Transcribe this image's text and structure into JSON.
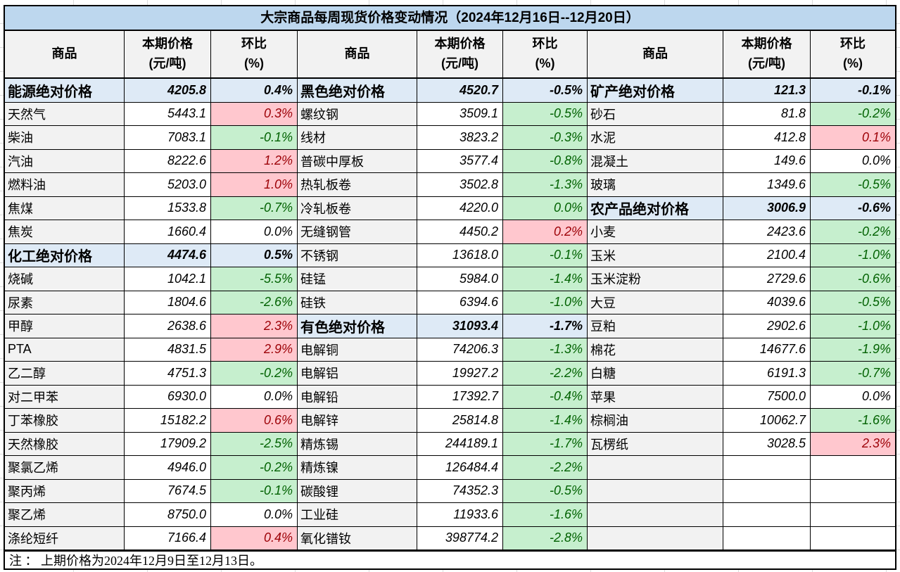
{
  "title": "大宗商品每周现货价格变动情况（2024年12月16日--12月20日）",
  "note": "注 ： 上期价格为2024年12月9日至12月13日。",
  "columns": {
    "commodity": "商品",
    "price": "本期价格",
    "price_unit": "(元/吨)",
    "pct": "环比",
    "pct_unit": "(%)"
  },
  "colors": {
    "title_bg": "#BDD7EE",
    "header_bg": "#F2F2F2",
    "name_col_bg": "#F2F2F2",
    "category_row_bg": "#DEEAF6",
    "increase_bg": "#FFC7CE",
    "increase_text": "#9C0006",
    "decrease_bg": "#C6EFCE",
    "decrease_text": "#006100",
    "grid_border": "#000000"
  },
  "groups": [
    {
      "rows": [
        {
          "name": "能源绝对价格",
          "price": "4205.8",
          "pct": "0.4%",
          "style": "category"
        },
        {
          "name": "天然气",
          "price": "5443.1",
          "pct": "0.3%",
          "style": "up"
        },
        {
          "name": "柴油",
          "price": "7083.1",
          "pct": "-0.1%",
          "style": "down"
        },
        {
          "name": "汽油",
          "price": "8222.6",
          "pct": "1.2%",
          "style": "up"
        },
        {
          "name": "燃料油",
          "price": "5203.0",
          "pct": "1.0%",
          "style": "up"
        },
        {
          "name": "焦煤",
          "price": "1533.8",
          "pct": "-0.7%",
          "style": "down"
        },
        {
          "name": "焦炭",
          "price": "1660.4",
          "pct": "0.0%",
          "style": "flat"
        },
        {
          "name": "化工绝对价格",
          "price": "4474.6",
          "pct": "0.5%",
          "style": "category"
        },
        {
          "name": "烧碱",
          "price": "1042.1",
          "pct": "-5.5%",
          "style": "down"
        },
        {
          "name": "尿素",
          "price": "1804.6",
          "pct": "-2.6%",
          "style": "down"
        },
        {
          "name": "甲醇",
          "price": "2638.6",
          "pct": "2.3%",
          "style": "up"
        },
        {
          "name": "PTA",
          "price": "4831.5",
          "pct": "2.9%",
          "style": "up"
        },
        {
          "name": "乙二醇",
          "price": "4751.3",
          "pct": "-0.2%",
          "style": "down"
        },
        {
          "name": "对二甲苯",
          "price": "6930.0",
          "pct": "0.0%",
          "style": "flat"
        },
        {
          "name": "丁苯橡胶",
          "price": "15182.2",
          "pct": "0.6%",
          "style": "up"
        },
        {
          "name": "天然橡胶",
          "price": "17909.2",
          "pct": "-2.5%",
          "style": "down"
        },
        {
          "name": "聚氯乙烯",
          "price": "4946.0",
          "pct": "-0.2%",
          "style": "down"
        },
        {
          "name": "聚丙烯",
          "price": "7674.5",
          "pct": "-0.1%",
          "style": "down"
        },
        {
          "name": "聚乙烯",
          "price": "8750.0",
          "pct": "0.0%",
          "style": "flat"
        },
        {
          "name": "涤纶短纤",
          "price": "7166.4",
          "pct": "0.4%",
          "style": "up"
        }
      ]
    },
    {
      "rows": [
        {
          "name": "黑色绝对价格",
          "price": "4520.7",
          "pct": "-0.5%",
          "style": "category"
        },
        {
          "name": "螺纹钢",
          "price": "3509.1",
          "pct": "-0.5%",
          "style": "down"
        },
        {
          "name": "线材",
          "price": "3823.2",
          "pct": "-0.3%",
          "style": "down"
        },
        {
          "name": "普碳中厚板",
          "price": "3577.4",
          "pct": "-0.8%",
          "style": "down"
        },
        {
          "name": "热轧板卷",
          "price": "3502.8",
          "pct": "-1.3%",
          "style": "down"
        },
        {
          "name": "冷轧板卷",
          "price": "4220.0",
          "pct": "0.0%",
          "style": "down"
        },
        {
          "name": "无缝钢管",
          "price": "4450.2",
          "pct": "0.2%",
          "style": "up"
        },
        {
          "name": "不锈钢",
          "price": "13618.0",
          "pct": "-0.1%",
          "style": "down"
        },
        {
          "name": "硅锰",
          "price": "5984.0",
          "pct": "-1.4%",
          "style": "down"
        },
        {
          "name": "硅铁",
          "price": "6394.6",
          "pct": "-1.0%",
          "style": "down"
        },
        {
          "name": "有色绝对价格",
          "price": "31093.4",
          "pct": "-1.7%",
          "style": "category"
        },
        {
          "name": "电解铜",
          "price": "74206.3",
          "pct": "-1.3%",
          "style": "down"
        },
        {
          "name": "电解铝",
          "price": "19927.2",
          "pct": "-2.2%",
          "style": "down"
        },
        {
          "name": "电解铅",
          "price": "17392.7",
          "pct": "-0.4%",
          "style": "down"
        },
        {
          "name": "电解锌",
          "price": "25814.8",
          "pct": "-1.4%",
          "style": "down"
        },
        {
          "name": "精炼锡",
          "price": "244189.1",
          "pct": "-1.7%",
          "style": "down"
        },
        {
          "name": "精炼镍",
          "price": "126484.4",
          "pct": "-2.2%",
          "style": "down"
        },
        {
          "name": "碳酸锂",
          "price": "74352.3",
          "pct": "-0.5%",
          "style": "down"
        },
        {
          "name": "工业硅",
          "price": "11933.6",
          "pct": "-1.6%",
          "style": "down"
        },
        {
          "name": "氧化镨钕",
          "price": "398774.2",
          "pct": "-2.8%",
          "style": "down"
        }
      ]
    },
    {
      "rows": [
        {
          "name": "矿产绝对价格",
          "price": "121.3",
          "pct": "-0.1%",
          "style": "category"
        },
        {
          "name": "砂石",
          "price": "81.8",
          "pct": "-0.2%",
          "style": "down"
        },
        {
          "name": "水泥",
          "price": "412.8",
          "pct": "0.1%",
          "style": "up"
        },
        {
          "name": "混凝土",
          "price": "149.6",
          "pct": "0.0%",
          "style": "flat"
        },
        {
          "name": "玻璃",
          "price": "1349.6",
          "pct": "-0.5%",
          "style": "down"
        },
        {
          "name": "农产品绝对价格",
          "price": "3006.9",
          "pct": "-0.6%",
          "style": "category"
        },
        {
          "name": "小麦",
          "price": "2423.6",
          "pct": "-0.2%",
          "style": "down"
        },
        {
          "name": "玉米",
          "price": "2100.4",
          "pct": "-1.0%",
          "style": "down"
        },
        {
          "name": "玉米淀粉",
          "price": "2729.6",
          "pct": "-0.6%",
          "style": "down"
        },
        {
          "name": "大豆",
          "price": "4039.6",
          "pct": "-0.5%",
          "style": "down"
        },
        {
          "name": "豆粕",
          "price": "2902.6",
          "pct": "-1.0%",
          "style": "down"
        },
        {
          "name": "棉花",
          "price": "14677.6",
          "pct": "-1.9%",
          "style": "down"
        },
        {
          "name": "白糖",
          "price": "6191.3",
          "pct": "-0.7%",
          "style": "down"
        },
        {
          "name": "苹果",
          "price": "7500.0",
          "pct": "0.0%",
          "style": "flat"
        },
        {
          "name": "棕榈油",
          "price": "10062.7",
          "pct": "-1.6%",
          "style": "down"
        },
        {
          "name": "瓦楞纸",
          "price": "3028.5",
          "pct": "2.3%",
          "style": "up"
        },
        {
          "name": "",
          "price": "",
          "pct": "",
          "style": "empty"
        },
        {
          "name": "",
          "price": "",
          "pct": "",
          "style": "empty"
        },
        {
          "name": "",
          "price": "",
          "pct": "",
          "style": "empty"
        },
        {
          "name": "",
          "price": "",
          "pct": "",
          "style": "empty"
        }
      ]
    }
  ]
}
